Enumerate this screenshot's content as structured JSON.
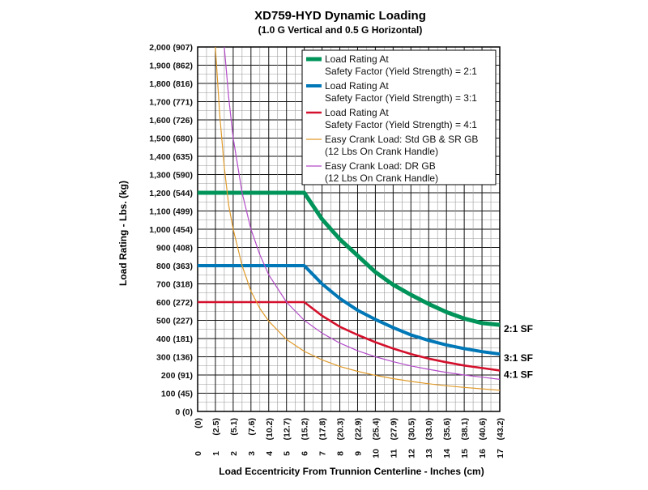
{
  "chart_data": {
    "type": "line",
    "title": "XD759-HYD Dynamic Loading",
    "subtitle": "(1.0 G Vertical and 0.5 G Horizontal)",
    "xlabel": "Load Eccentricity From Trunnion Centerline - Inches (cm)",
    "ylabel": "Load Rating - Lbs. (kg)",
    "xlim": [
      0,
      17
    ],
    "ylim": [
      0,
      2000
    ],
    "grid": true,
    "legend_position": "top-right",
    "x_ticks": [
      {
        "inch": "0",
        "cm": "(0)"
      },
      {
        "inch": "1",
        "cm": "(2.5)"
      },
      {
        "inch": "2",
        "cm": "(5.1)"
      },
      {
        "inch": "3",
        "cm": "(7.6)"
      },
      {
        "inch": "4",
        "cm": "(10.2)"
      },
      {
        "inch": "5",
        "cm": "(12.7)"
      },
      {
        "inch": "6",
        "cm": "(15.2)"
      },
      {
        "inch": "7",
        "cm": "(17.8)"
      },
      {
        "inch": "8",
        "cm": "(20.3)"
      },
      {
        "inch": "9",
        "cm": "(22.9)"
      },
      {
        "inch": "10",
        "cm": "(25.4)"
      },
      {
        "inch": "11",
        "cm": "(27.9)"
      },
      {
        "inch": "12",
        "cm": "(30.5)"
      },
      {
        "inch": "13",
        "cm": "(33.0)"
      },
      {
        "inch": "14",
        "cm": "(35.6)"
      },
      {
        "inch": "15",
        "cm": "(38.1)"
      },
      {
        "inch": "16",
        "cm": "(40.6)"
      },
      {
        "inch": "17",
        "cm": "(43.2)"
      }
    ],
    "y_ticks": [
      "0 (0)",
      "100 (45)",
      "200 (91)",
      "300 (136)",
      "400 (181)",
      "500 (227)",
      "600 (272)",
      "700 (318)",
      "800 (363)",
      "900 (408)",
      "1,000 (454)",
      "1,100 (499)",
      "1,200 (544)",
      "1,300 (590)",
      "1,400 (635)",
      "1,500 (680)",
      "1,600 (726)",
      "1,700 (771)",
      "1,800 (816)",
      "1,900 (862)",
      "2,000 (907)"
    ],
    "series": [
      {
        "name_line1": "Load Rating At",
        "name_line2": "Safety Factor (Yield Strength) = 2:1",
        "end_label": "2:1 SF",
        "color": "#00945a",
        "weight": "heavy",
        "x": [
          0,
          6,
          7,
          8,
          9,
          10,
          11,
          12,
          13,
          14,
          15,
          16,
          17
        ],
        "y": [
          1200,
          1200,
          1055,
          945,
          855,
          765,
          695,
          640,
          590,
          545,
          510,
          485,
          475
        ]
      },
      {
        "name_line1": "Load Rating At",
        "name_line2": "Safety Factor (Yield Strength) = 3:1",
        "end_label": "3:1 SF",
        "color": "#0077b6",
        "weight": "medium",
        "x": [
          0,
          6,
          7,
          8,
          9,
          10,
          11,
          12,
          13,
          14,
          15,
          16,
          17
        ],
        "y": [
          800,
          800,
          700,
          620,
          555,
          505,
          460,
          420,
          390,
          365,
          345,
          328,
          315
        ]
      },
      {
        "name_line1": "Load Rating At",
        "name_line2": "Safety Factor (Yield Strength) = 4:1",
        "end_label": "4:1 SF",
        "color": "#d4112c",
        "weight": "light",
        "x": [
          0,
          6,
          7,
          8,
          9,
          10,
          11,
          12,
          13,
          14,
          15,
          16,
          17
        ],
        "y": [
          600,
          600,
          525,
          465,
          420,
          380,
          345,
          315,
          290,
          270,
          252,
          238,
          225
        ]
      },
      {
        "name_line1": "Easy Crank Load: Std GB & SR  GB",
        "name_line2": "(12 Lbs On Crank Handle)",
        "end_label": "",
        "color": "#e09a2a",
        "weight": "thin",
        "x": [
          1,
          1.25,
          1.5,
          1.75,
          2,
          2.5,
          3,
          3.5,
          4,
          5,
          6,
          7,
          8,
          9,
          10,
          11,
          12,
          13,
          14,
          15,
          16,
          17
        ],
        "y": [
          2000,
          1620,
          1340,
          1130,
          1000,
          800,
          660,
          565,
          495,
          395,
          330,
          283,
          247,
          220,
          198,
          180,
          165,
          152,
          141,
          132,
          124,
          116
        ]
      },
      {
        "name_line1": "Easy Crank Load: DR GB",
        "name_line2": "(12 Lbs On Crank Handle)",
        "end_label": "",
        "color": "#b34bc8",
        "weight": "thin",
        "x": [
          1.5,
          1.75,
          2,
          2.5,
          3,
          3.5,
          4,
          5,
          6,
          7,
          8,
          9,
          10,
          11,
          12,
          13,
          14,
          15,
          16,
          17
        ],
        "y": [
          2000,
          1720,
          1500,
          1200,
          1000,
          860,
          750,
          600,
          500,
          430,
          375,
          333,
          300,
          273,
          250,
          231,
          214,
          200,
          188,
          176
        ]
      }
    ]
  }
}
